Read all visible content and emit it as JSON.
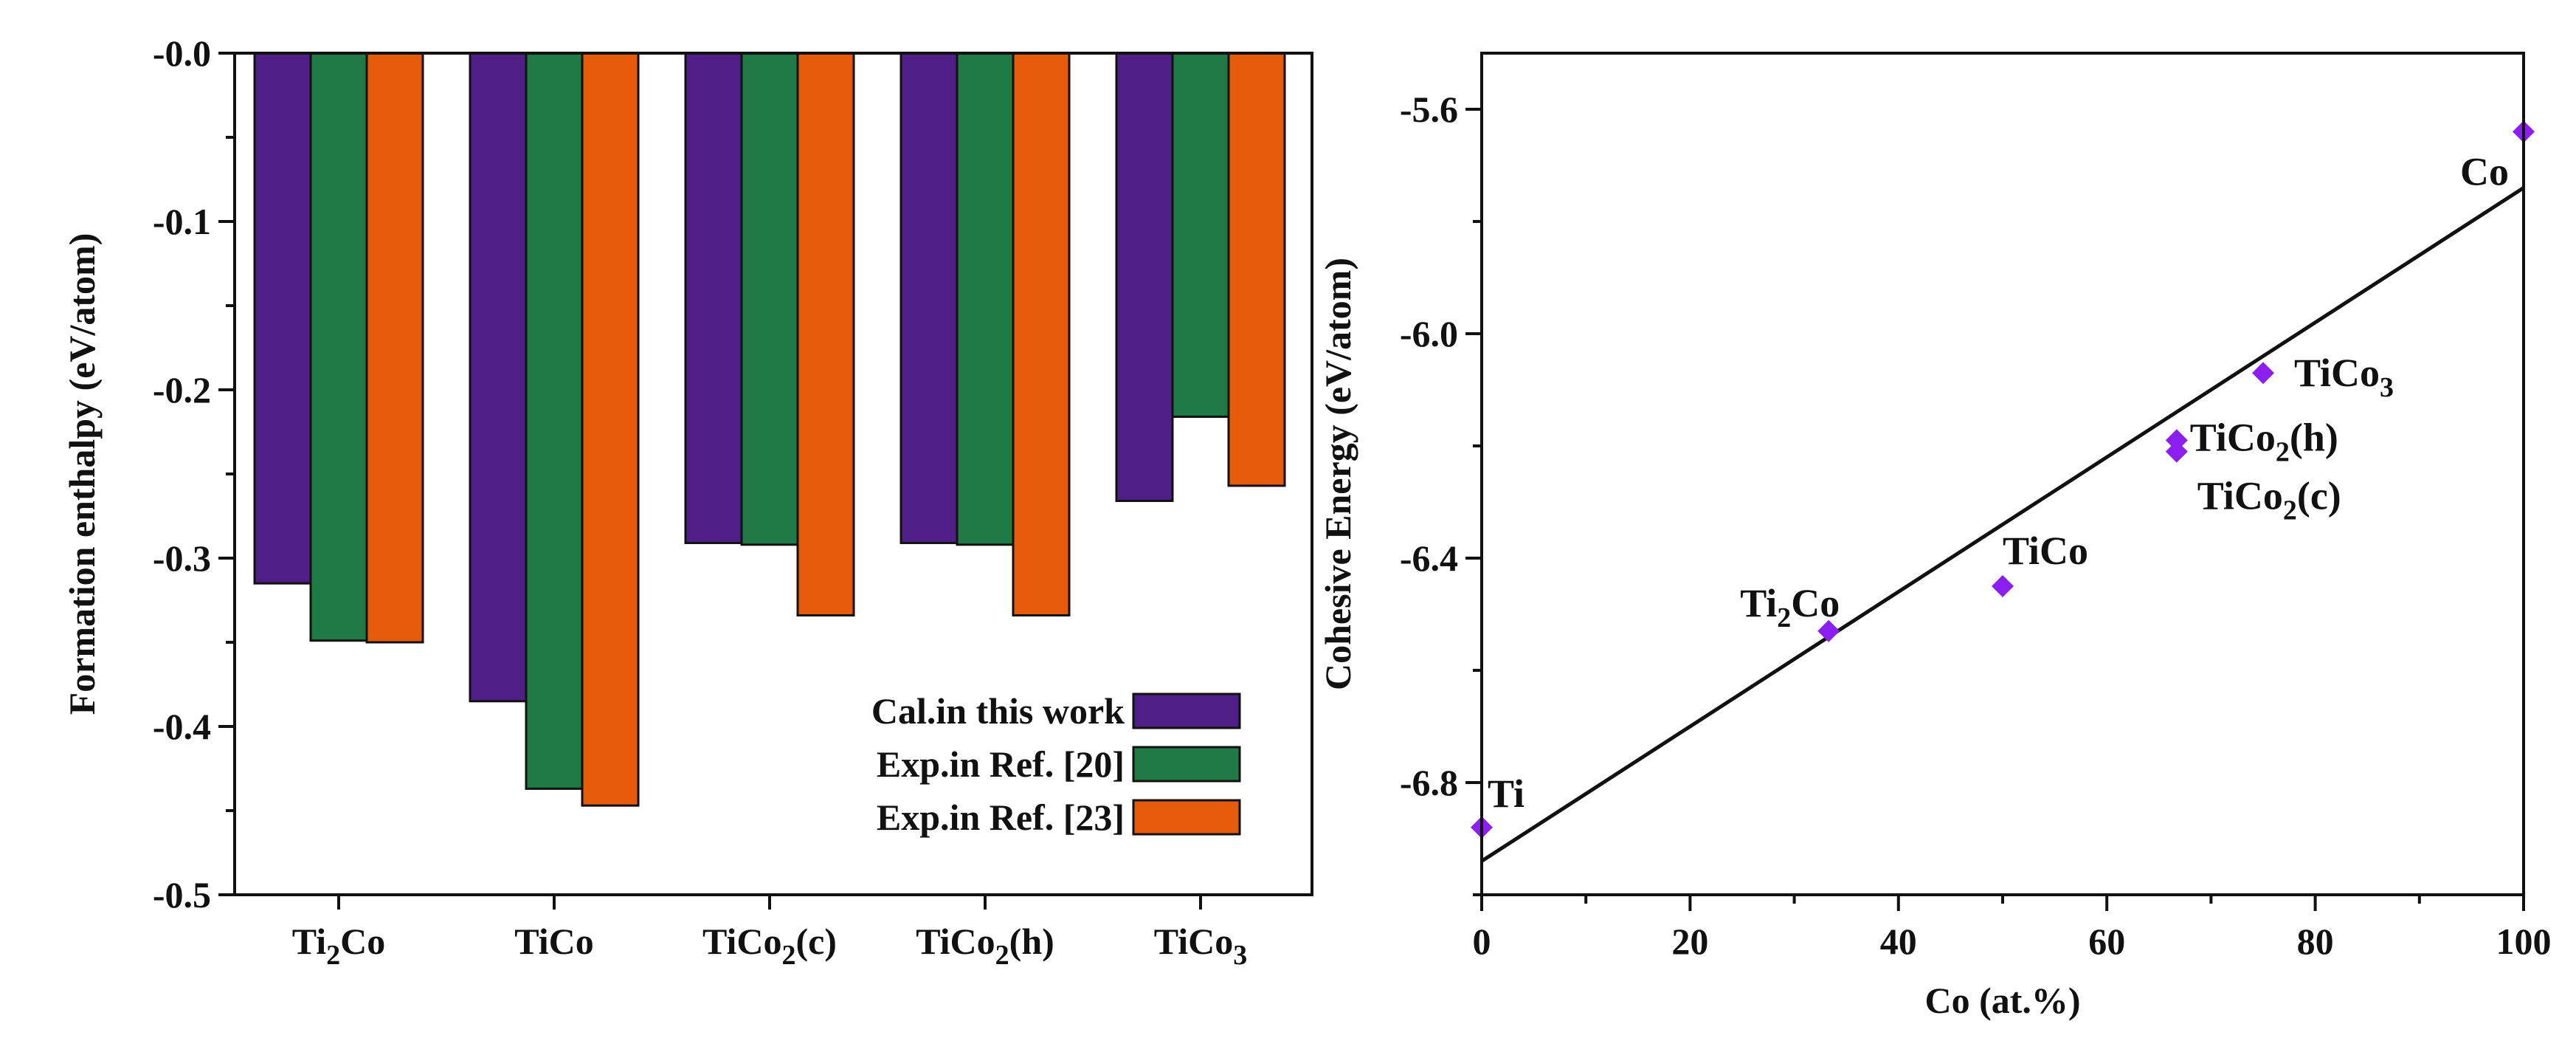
{
  "chart_data": [
    {
      "type": "bar",
      "ylabel": "Formation enthalpy (eV/atom)",
      "ylim": [
        -0.5,
        0.0
      ],
      "yticks": [
        {
          "value": 0.0,
          "label": "-0.0"
        },
        {
          "value": -0.1,
          "label": "-0.1"
        },
        {
          "value": -0.2,
          "label": "-0.2"
        },
        {
          "value": -0.3,
          "label": "-0.3"
        },
        {
          "value": -0.4,
          "label": "-0.4"
        },
        {
          "value": -0.5,
          "label": "-0.5"
        }
      ],
      "categories": [
        {
          "base": "Ti",
          "sub": "2",
          "rest": "Co"
        },
        {
          "base": "TiCo",
          "sub": "",
          "rest": ""
        },
        {
          "base": "TiCo",
          "sub": "2",
          "rest": "(c)"
        },
        {
          "base": "TiCo",
          "sub": "2",
          "rest": "(h)"
        },
        {
          "base": "TiCo",
          "sub": "3",
          "rest": ""
        }
      ],
      "series": [
        {
          "name": "Cal.in this work",
          "color": "#4f1e87",
          "values": [
            -0.315,
            -0.385,
            -0.291,
            -0.291,
            -0.266
          ]
        },
        {
          "name": "Exp.in Ref. [20]",
          "color": "#1f7a45",
          "values": [
            -0.349,
            -0.437,
            -0.292,
            -0.292,
            -0.216
          ]
        },
        {
          "name": "Exp.in Ref. [23]",
          "color": "#e55b0a",
          "values": [
            -0.35,
            -0.447,
            -0.334,
            -0.334,
            -0.257
          ]
        }
      ],
      "legend_position": "bottom-right"
    },
    {
      "type": "scatter",
      "xlabel": "Co (at.%)",
      "ylabel": "Cohesive Energy (eV/atom)",
      "xlim": [
        0,
        100
      ],
      "ylim": [
        -7.0,
        -5.5
      ],
      "xticks": [
        {
          "value": 0,
          "label": "0"
        },
        {
          "value": 20,
          "label": "20"
        },
        {
          "value": 40,
          "label": "40"
        },
        {
          "value": 60,
          "label": "60"
        },
        {
          "value": 80,
          "label": "80"
        },
        {
          "value": 100,
          "label": "100"
        }
      ],
      "yticks": [
        {
          "value": -5.6,
          "label": "-5.6"
        },
        {
          "value": -6.0,
          "label": "-6.0"
        },
        {
          "value": -6.4,
          "label": "-6.4"
        },
        {
          "value": -6.8,
          "label": "-6.8"
        }
      ],
      "marker_color": "#8a1ff0",
      "points": [
        {
          "x": 0,
          "y": -6.88,
          "label": {
            "base": "Ti",
            "sub": "",
            "rest": ""
          }
        },
        {
          "x": 33.3,
          "y": -6.53,
          "label": {
            "base": "Ti",
            "sub": "2",
            "rest": "Co"
          }
        },
        {
          "x": 50,
          "y": -6.45,
          "label": {
            "base": "TiCo",
            "sub": "",
            "rest": ""
          }
        },
        {
          "x": 66.7,
          "y": -6.19,
          "label": {
            "base": "TiCo",
            "sub": "2",
            "rest": "(h)"
          }
        },
        {
          "x": 66.7,
          "y": -6.21,
          "label": {
            "base": "TiCo",
            "sub": "2",
            "rest": "(c)"
          }
        },
        {
          "x": 75,
          "y": -6.07,
          "label": {
            "base": "TiCo",
            "sub": "3",
            "rest": ""
          }
        },
        {
          "x": 100,
          "y": -5.64,
          "label": {
            "base": "Co",
            "sub": "",
            "rest": ""
          }
        }
      ],
      "fit_line": {
        "x": [
          0,
          100
        ],
        "y": [
          -6.94,
          -5.74
        ]
      }
    }
  ]
}
